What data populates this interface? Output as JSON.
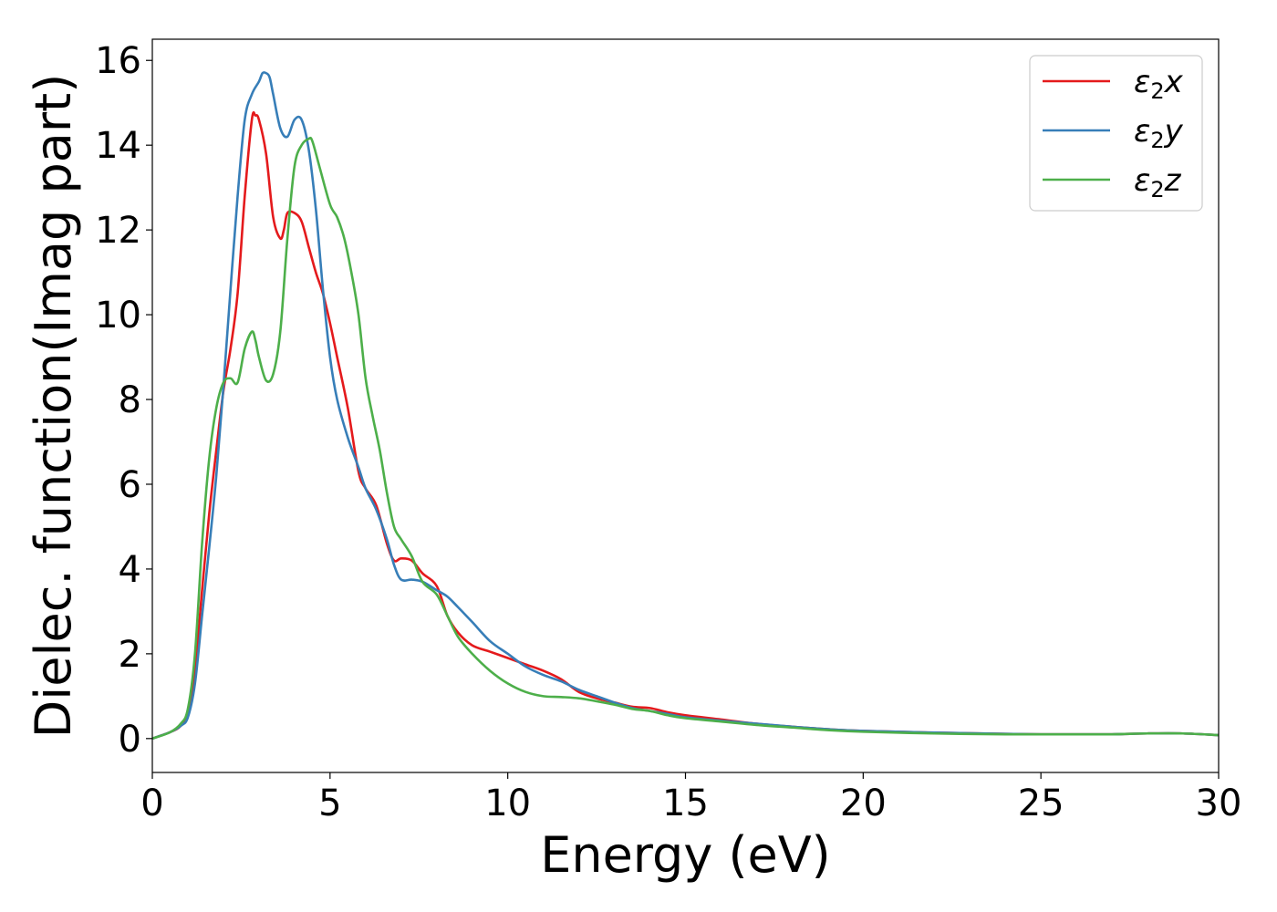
{
  "chart_data": {
    "type": "line",
    "title": "",
    "xlabel": "Energy (eV)",
    "ylabel": "Dielec. function(Imag part)",
    "xlim": [
      0,
      30
    ],
    "ylim": [
      -0.8,
      16.5
    ],
    "xticks": [
      0,
      5,
      10,
      15,
      20,
      25,
      30
    ],
    "yticks": [
      0,
      2,
      4,
      6,
      8,
      10,
      12,
      14,
      16
    ],
    "grid": false,
    "legend_position": "top-right",
    "series": [
      {
        "name": "ε2x",
        "legend": {
          "base": "ε",
          "sub": "2",
          "var": "x"
        },
        "color": "#e41a1c",
        "x": [
          0,
          0.5,
          0.8,
          1.0,
          1.2,
          1.4,
          1.6,
          1.8,
          2.0,
          2.2,
          2.4,
          2.6,
          2.8,
          2.9,
          3.0,
          3.2,
          3.4,
          3.6,
          3.7,
          3.8,
          4.0,
          4.2,
          4.4,
          4.6,
          4.8,
          5.0,
          5.2,
          5.5,
          5.8,
          6.0,
          6.3,
          6.6,
          6.8,
          7.0,
          7.3,
          7.6,
          8.0,
          8.3,
          8.6,
          9.0,
          9.5,
          10,
          10.5,
          11,
          11.5,
          12,
          12.5,
          13,
          13.5,
          14,
          14.5,
          15,
          16,
          17,
          18,
          19,
          20,
          22,
          24,
          25,
          26,
          27,
          28,
          29,
          30
        ],
        "y": [
          0,
          0.15,
          0.3,
          0.6,
          1.6,
          3.5,
          5.3,
          6.8,
          8.2,
          9.2,
          10.5,
          12.8,
          14.6,
          14.7,
          14.6,
          13.8,
          12.3,
          11.8,
          12.0,
          12.4,
          12.4,
          12.2,
          11.6,
          11.0,
          10.5,
          9.8,
          9.0,
          7.8,
          6.3,
          5.9,
          5.5,
          4.6,
          4.2,
          4.25,
          4.2,
          3.9,
          3.6,
          2.9,
          2.5,
          2.2,
          2.05,
          1.9,
          1.75,
          1.6,
          1.4,
          1.1,
          0.95,
          0.85,
          0.75,
          0.72,
          0.62,
          0.55,
          0.45,
          0.35,
          0.28,
          0.22,
          0.18,
          0.14,
          0.11,
          0.1,
          0.1,
          0.1,
          0.12,
          0.12,
          0.08
        ]
      },
      {
        "name": "ε2y",
        "legend": {
          "base": "ε",
          "sub": "2",
          "var": "y"
        },
        "color": "#377eb8",
        "x": [
          0,
          0.5,
          0.8,
          1.0,
          1.2,
          1.4,
          1.6,
          1.8,
          2.0,
          2.2,
          2.4,
          2.6,
          2.8,
          3.0,
          3.1,
          3.2,
          3.3,
          3.4,
          3.6,
          3.8,
          4.0,
          4.2,
          4.4,
          4.6,
          4.8,
          5.0,
          5.2,
          5.5,
          5.8,
          6.0,
          6.3,
          6.6,
          6.8,
          7.0,
          7.3,
          7.6,
          8.0,
          8.3,
          8.6,
          9.0,
          9.5,
          10,
          10.5,
          11,
          11.5,
          12,
          12.5,
          13,
          13.5,
          14,
          14.5,
          15,
          16,
          17,
          18,
          19,
          20,
          22,
          24,
          25,
          26,
          27,
          28,
          29,
          30
        ],
        "y": [
          0,
          0.15,
          0.3,
          0.5,
          1.3,
          2.9,
          4.5,
          6.2,
          8.3,
          10.6,
          12.8,
          14.6,
          15.2,
          15.5,
          15.7,
          15.7,
          15.6,
          15.2,
          14.4,
          14.2,
          14.6,
          14.6,
          13.9,
          12.5,
          10.6,
          9.0,
          8.0,
          7.1,
          6.4,
          5.9,
          5.4,
          4.7,
          4.1,
          3.75,
          3.75,
          3.7,
          3.5,
          3.35,
          3.1,
          2.75,
          2.3,
          2.0,
          1.7,
          1.5,
          1.35,
          1.15,
          1.0,
          0.85,
          0.72,
          0.65,
          0.58,
          0.5,
          0.42,
          0.35,
          0.28,
          0.22,
          0.18,
          0.14,
          0.11,
          0.1,
          0.1,
          0.1,
          0.12,
          0.12,
          0.08
        ]
      },
      {
        "name": "ε2z",
        "legend": {
          "base": "ε",
          "sub": "2",
          "var": "z"
        },
        "color": "#4daf4a",
        "x": [
          0,
          0.5,
          0.8,
          1.0,
          1.2,
          1.4,
          1.6,
          1.8,
          2.0,
          2.2,
          2.4,
          2.6,
          2.8,
          2.9,
          3.0,
          3.2,
          3.4,
          3.6,
          3.8,
          4.0,
          4.2,
          4.4,
          4.5,
          4.7,
          5.0,
          5.2,
          5.4,
          5.6,
          5.8,
          6.0,
          6.2,
          6.4,
          6.6,
          6.8,
          7.0,
          7.3,
          7.6,
          8.0,
          8.3,
          8.6,
          9.0,
          9.5,
          10,
          10.5,
          11,
          11.5,
          12,
          12.5,
          13,
          13.5,
          14,
          14.5,
          15,
          16,
          17,
          18,
          19,
          20,
          22,
          24,
          25,
          26,
          27,
          28,
          29,
          30
        ],
        "y": [
          0,
          0.15,
          0.35,
          0.7,
          2.0,
          4.6,
          6.6,
          7.8,
          8.4,
          8.5,
          8.4,
          9.2,
          9.6,
          9.4,
          9.0,
          8.45,
          8.6,
          9.6,
          11.8,
          13.5,
          14.0,
          14.15,
          14.1,
          13.5,
          12.6,
          12.3,
          11.8,
          11.0,
          10.0,
          8.5,
          7.6,
          6.8,
          5.8,
          5.0,
          4.7,
          4.3,
          3.7,
          3.4,
          2.9,
          2.4,
          2.0,
          1.6,
          1.3,
          1.1,
          1.0,
          0.98,
          0.95,
          0.88,
          0.8,
          0.7,
          0.65,
          0.55,
          0.48,
          0.4,
          0.32,
          0.26,
          0.2,
          0.16,
          0.12,
          0.1,
          0.1,
          0.1,
          0.1,
          0.12,
          0.12,
          0.08
        ]
      }
    ]
  }
}
